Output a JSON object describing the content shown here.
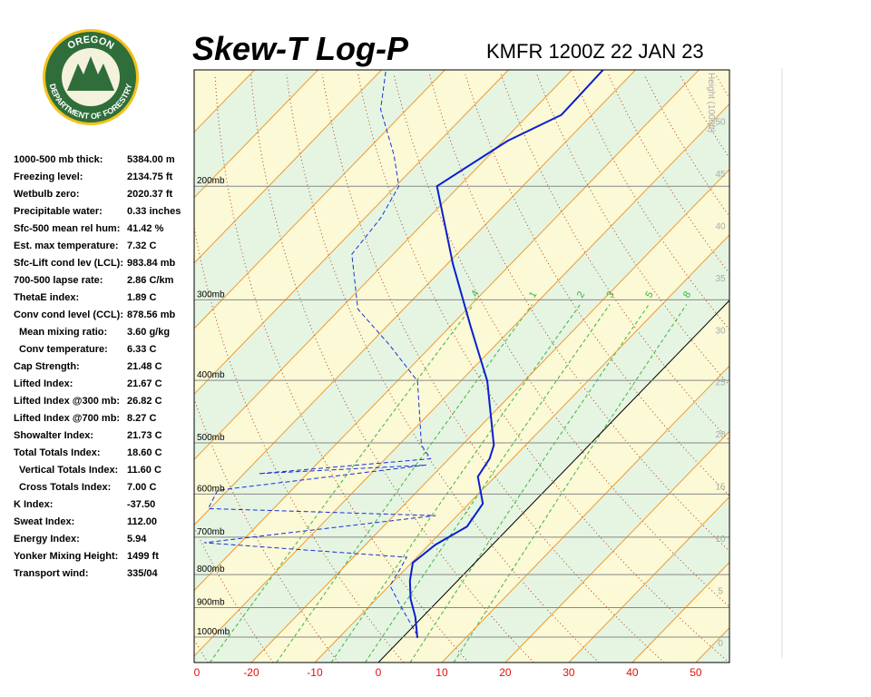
{
  "logo": {
    "top": "OREGON",
    "bottom": "DEPARTMENT OF FORESTRY"
  },
  "indices": [
    [
      "1000-500 mb thick:",
      "5384.00 m"
    ],
    [
      "Freezing level:",
      "2134.75 ft"
    ],
    [
      "Wetbulb zero:",
      "2020.37 ft"
    ],
    [
      "Precipitable water:",
      "0.33 inches"
    ],
    [
      "Sfc-500 mean rel hum:",
      "41.42 %"
    ],
    [
      "Est. max temperature:",
      "7.32 C"
    ],
    [
      "Sfc-Lift cond lev (LCL):",
      "983.84 mb"
    ],
    [
      "700-500 lapse rate:",
      "2.86 C/km"
    ],
    [
      "ThetaE index:",
      "1.89 C"
    ],
    [
      "Conv cond level (CCL):",
      "878.56 mb"
    ],
    [
      "Mean mixing ratio:",
      "3.60 g/kg"
    ],
    [
      "Conv temperature:",
      "6.33 C"
    ],
    [
      "Cap Strength:",
      "21.48 C"
    ],
    [
      "Lifted Index:",
      "21.67 C"
    ],
    [
      "Lifted Index @300 mb:",
      "26.82 C"
    ],
    [
      "Lifted Index @700 mb:",
      "8.27 C"
    ],
    [
      "Showalter Index:",
      "21.73 C"
    ],
    [
      "Total Totals Index:",
      "18.60 C"
    ],
    [
      "Vertical Totals Index:",
      "11.60 C"
    ],
    [
      "Cross Totals Index:",
      "7.00 C"
    ],
    [
      "K Index:",
      "-37.50"
    ],
    [
      "Sweat Index:",
      "112.00"
    ],
    [
      "Energy Index:",
      "5.94"
    ],
    [
      "Yonker Mixing Height:",
      "1499 ft"
    ],
    [
      "Transport wind:",
      "335/04"
    ]
  ],
  "chart_data": {
    "type": "skewt",
    "title": "Skew-T Log-P",
    "subtitle": "KMFR 1200Z 22 JAN 23",
    "y2label": "Height (1000ft)",
    "xlim": [
      -29,
      55.3
    ],
    "xticks": [
      {
        "value": -30,
        "label": "0"
      },
      -20,
      -10,
      0,
      10,
      20,
      30,
      40,
      50
    ],
    "ylim": [
      1095,
      132
    ],
    "log_y": true,
    "yticks": [
      {
        "value": 200,
        "label": "200mb"
      },
      {
        "value": 300,
        "label": "300mb"
      },
      {
        "value": 400,
        "label": "400mb"
      },
      {
        "value": 500,
        "label": "500mb"
      },
      {
        "value": 600,
        "label": "600mb"
      },
      {
        "value": 700,
        "label": "700mb"
      },
      {
        "value": 800,
        "label": "800mb"
      },
      {
        "value": 900,
        "label": "900mb"
      },
      {
        "value": 1000,
        "label": "1000mb"
      }
    ],
    "y2lim": [
      -1.9,
      54.9
    ],
    "y2ticks": [
      0,
      5,
      10,
      15,
      20,
      25,
      30,
      35,
      40,
      45,
      50
    ],
    "mixing_ratios": [
      {
        "value": 0.4,
        "label": ".4"
      },
      1,
      2,
      3,
      5,
      8
    ],
    "series": [
      {
        "color": "#0a1fd0",
        "dashed": false,
        "values": [
          1003,
          931,
          873,
          818,
          767,
          719,
          674,
          621,
          564,
          529,
          504,
          401,
          331,
          264,
          200,
          170,
          155,
          132
        ],
        "x": [
          2.4,
          -1.1,
          -4.6,
          -7.5,
          -9.8,
          -9.0,
          -6.8,
          -7.8,
          -12.7,
          -13.6,
          -15.0,
          -25.8,
          -36.6,
          -49.1,
          -63.5,
          -59.3,
          -54.8,
          -55.1
        ]
      },
      {
        "color": "#1a2fd8",
        "dashed": true,
        "values": [
          994,
          887,
          832,
          787,
          752,
          714,
          648,
          632,
          592,
          541,
          558,
          529,
          504,
          401,
          353,
          310,
          255,
          224,
          200,
          179,
          152,
          132
        ],
        "x": [
          2.0,
          -5.7,
          -9.9,
          -10.8,
          -11.6,
          -45.7,
          -13.4,
          -50.3,
          -51.6,
          -22.6,
          -47.7,
          -22.9,
          -26.4,
          -36.8,
          -46.6,
          -57.2,
          -66.5,
          -67.5,
          -69.5,
          -75.0,
          -84.1,
          -89.3
        ]
      }
    ]
  }
}
